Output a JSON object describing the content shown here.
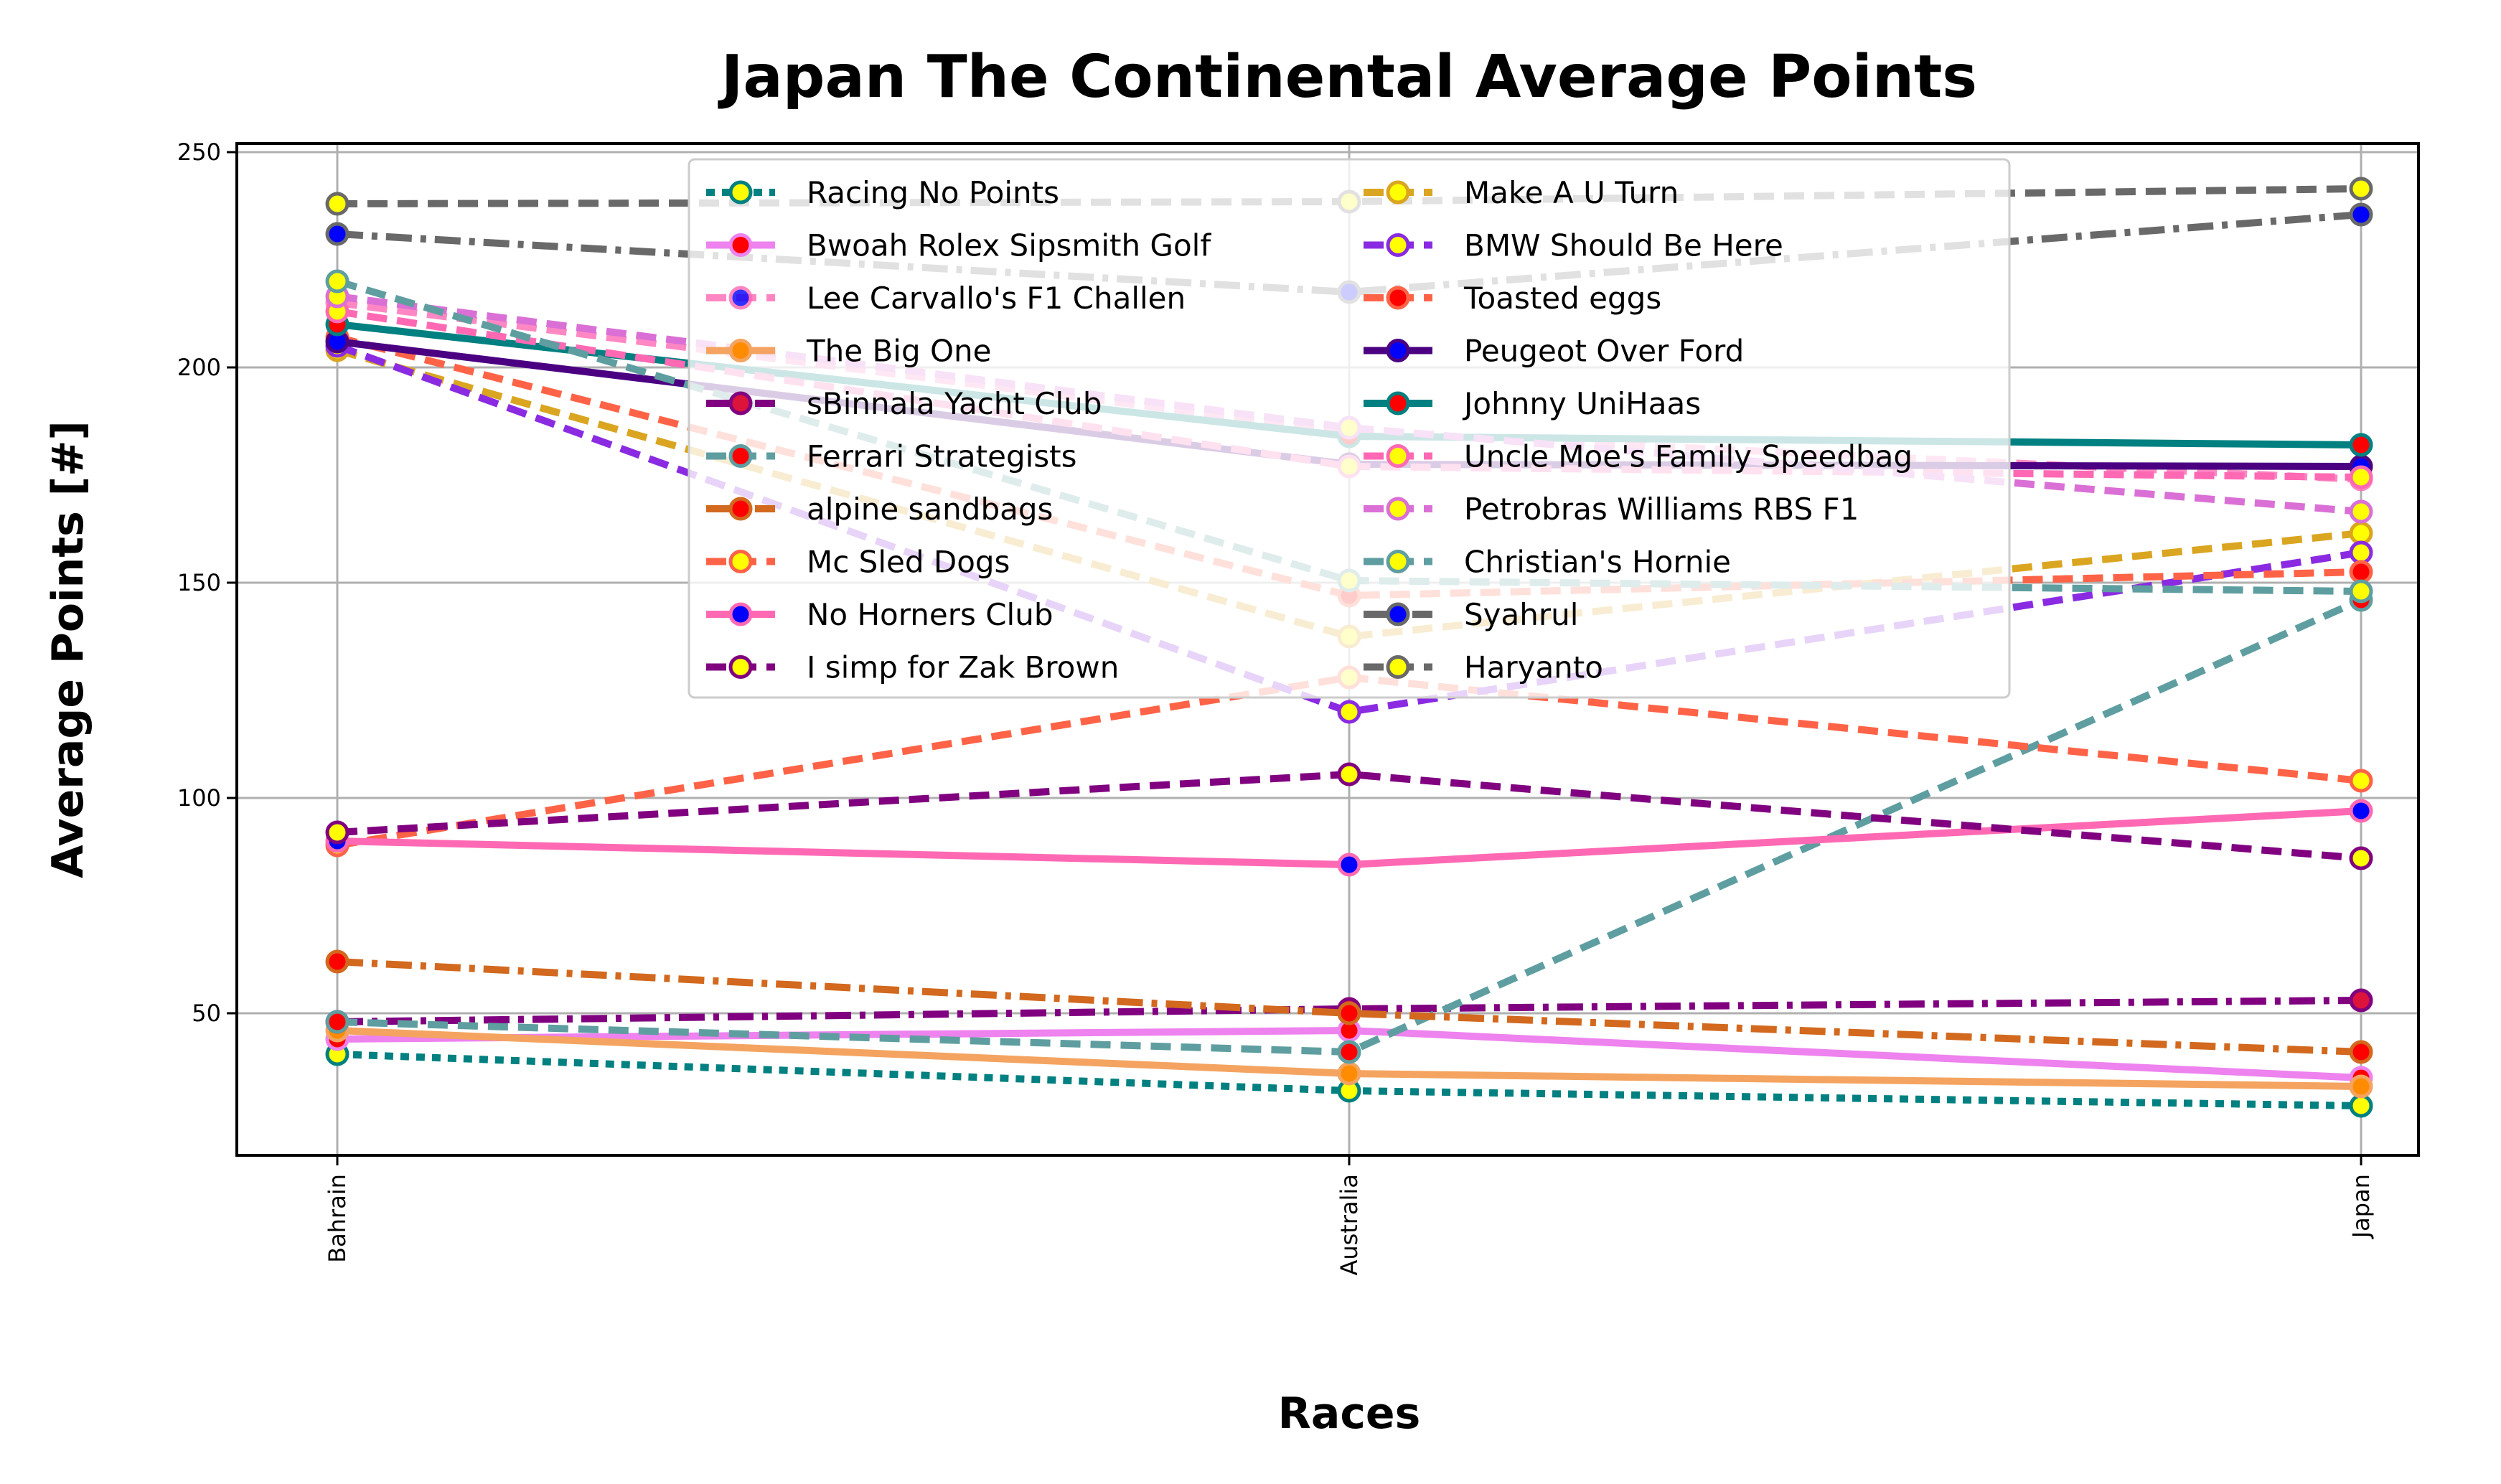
{
  "chart_data": {
    "type": "line",
    "title": "Japan The Continental Average Points",
    "xlabel": "Races",
    "ylabel": "Average Points [#]",
    "categories": [
      "Bahrain",
      "Australia",
      "Japan"
    ],
    "ylim": [
      17,
      252
    ],
    "yticks": [
      50,
      100,
      150,
      200,
      250
    ],
    "grid": true,
    "legend_position": "top-center",
    "series": [
      {
        "name": "Racing No Points",
        "values": [
          40.5,
          32.0,
          28.5
        ],
        "color": "#008080",
        "dash": "dotted",
        "alpha": 1,
        "marker_face": "#ffff00"
      },
      {
        "name": "Bwoah Rolex Sipsmith Golf",
        "values": [
          44.0,
          46.0,
          35.0
        ],
        "color": "#ee82ee",
        "dash": "solid",
        "alpha": 1,
        "marker_face": "#ff0000"
      },
      {
        "name": "Lee Carvallo's F1 Challen",
        "values": [
          215.0,
          185.0,
          174.0
        ],
        "color": "#ff69b4",
        "dash": "dashed",
        "alpha": 0.8,
        "marker_face": "#0000ff"
      },
      {
        "name": "The Big One",
        "values": [
          46.0,
          36.0,
          33.0
        ],
        "color": "#f4a460",
        "dash": "solid",
        "alpha": 1,
        "marker_face": "#ff8c00"
      },
      {
        "name": "sBinnala Yacht Club",
        "values": [
          48.0,
          51.0,
          53.0
        ],
        "color": "#800080",
        "dash": "dashdot",
        "alpha": 1,
        "marker_face": "#dc143c"
      },
      {
        "name": "Ferrari Strategists",
        "values": [
          48.0,
          41.0,
          146.0
        ],
        "color": "#5f9ea0",
        "dash": "dashed",
        "alpha": 1,
        "marker_face": "#ff0000"
      },
      {
        "name": "alpine sandbags",
        "values": [
          62.0,
          50.0,
          41.0
        ],
        "color": "#d2691e",
        "dash": "dashdot",
        "alpha": 1,
        "marker_face": "#ff0000"
      },
      {
        "name": "Mc Sled Dogs",
        "values": [
          89.0,
          128.0,
          104.0
        ],
        "color": "#ff6347",
        "dash": "dashed",
        "alpha": 1,
        "marker_face": "#ffff00"
      },
      {
        "name": "No Horners Club",
        "values": [
          90.0,
          84.5,
          97.0
        ],
        "color": "#ff69b4",
        "dash": "solid",
        "alpha": 1,
        "marker_face": "#0000ff"
      },
      {
        "name": "I simp for Zak Brown",
        "values": [
          92.0,
          105.5,
          86.0
        ],
        "color": "#800080",
        "dash": "dashed",
        "alpha": 1,
        "marker_face": "#ffff00"
      },
      {
        "name": "Make A U Turn",
        "values": [
          204.0,
          137.5,
          161.5
        ],
        "color": "#daa520",
        "dash": "dashed",
        "alpha": 1,
        "marker_face": "#ffff00"
      },
      {
        "name": "BMW Should Be Here",
        "values": [
          205.0,
          120.0,
          157.0
        ],
        "color": "#8a2be2",
        "dash": "dashed",
        "alpha": 1,
        "marker_face": "#ffff00"
      },
      {
        "name": "Toasted eggs",
        "values": [
          207.0,
          147.0,
          152.5
        ],
        "color": "#ff6347",
        "dash": "dashed",
        "alpha": 1,
        "marker_face": "#ff0000"
      },
      {
        "name": "Peugeot Over Ford",
        "values": [
          206.0,
          177.5,
          177.0
        ],
        "color": "#4b0082",
        "dash": "solid",
        "alpha": 1,
        "marker_face": "#0000ff"
      },
      {
        "name": "Johnny UniHaas",
        "values": [
          210.0,
          184.0,
          182.0
        ],
        "color": "#008080",
        "dash": "solid",
        "alpha": 1,
        "marker_face": "#ff0000"
      },
      {
        "name": "Uncle Moe's Family Speedbag",
        "values": [
          213.0,
          177.0,
          174.5
        ],
        "color": "#ff69b4",
        "dash": "dashed",
        "alpha": 1,
        "marker_face": "#ffff00"
      },
      {
        "name": "Petrobras Williams RBS F1",
        "values": [
          216.5,
          186.0,
          166.5
        ],
        "color": "#da70d6",
        "dash": "dashed",
        "alpha": 1,
        "marker_face": "#ffff00"
      },
      {
        "name": "Christian's Hornie",
        "values": [
          220.0,
          150.5,
          148.0
        ],
        "color": "#5f9ea0",
        "dash": "dashed",
        "alpha": 1,
        "marker_face": "#ffff00"
      },
      {
        "name": "Syahrul",
        "values": [
          231.0,
          217.5,
          235.5
        ],
        "color": "#696969",
        "dash": "dashdot",
        "alpha": 1,
        "marker_face": "#0000ff"
      },
      {
        "name": "Haryanto",
        "values": [
          238.0,
          238.5,
          241.5
        ],
        "color": "#696969",
        "dash": "dashed",
        "alpha": 1,
        "marker_face": "#ffff00"
      }
    ]
  }
}
